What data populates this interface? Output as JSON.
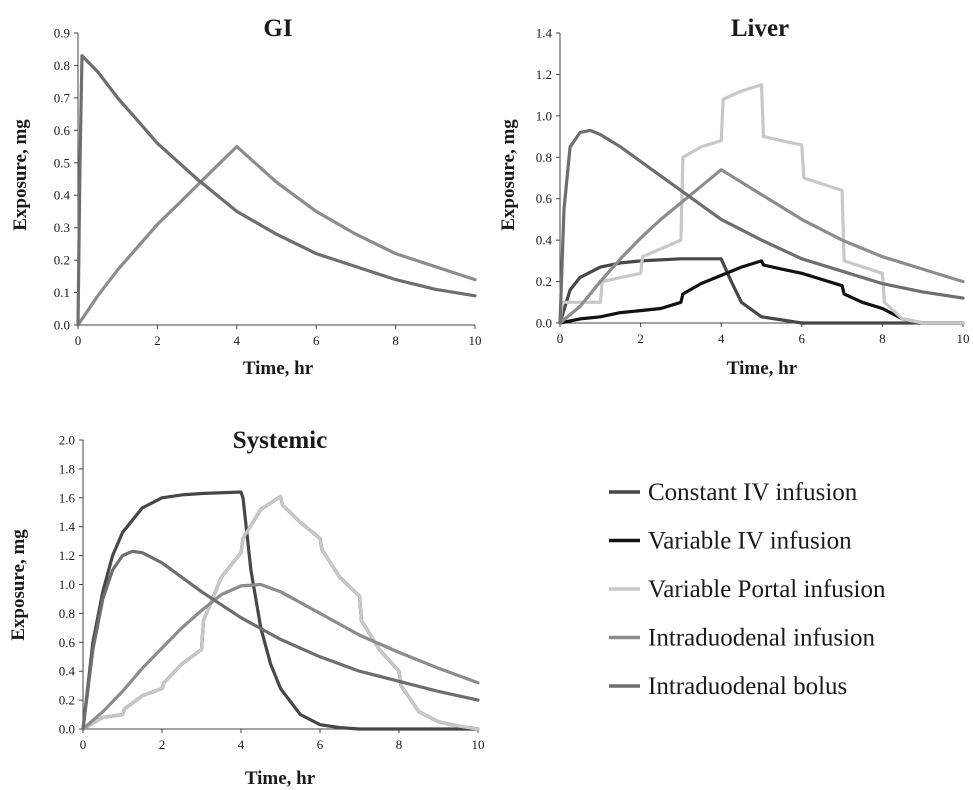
{
  "legend": {
    "entries": [
      {
        "label": "Constant IV infusion",
        "color": "#474747"
      },
      {
        "label": "Variable IV infusion",
        "color": "#111111"
      },
      {
        "label": "Variable Portal infusion",
        "color": "#c8c8c8"
      },
      {
        "label": "Intraduodenal infusion",
        "color": "#8c8c8c"
      },
      {
        "label": "Intraduodenal bolus",
        "color": "#6e6e6e"
      }
    ]
  },
  "chart_data": [
    {
      "type": "line",
      "title": "GI",
      "xlabel": "Time, hr",
      "ylabel": "Exposure, mg",
      "xlim": [
        0,
        10
      ],
      "ylim": [
        0,
        0.9
      ],
      "xticks": [
        "0",
        "2",
        "4",
        "6",
        "8",
        "10"
      ],
      "yticks": [
        "0.0",
        "0.1",
        "0.2",
        "0.3",
        "0.4",
        "0.5",
        "0.6",
        "0.7",
        "0.8",
        "0.9"
      ],
      "grid": false,
      "series": [
        {
          "name": "Intraduodenal infusion",
          "color": "#8c8c8c",
          "x": [
            0,
            0.5,
            1,
            1.5,
            2,
            2.5,
            3,
            3.5,
            4,
            5,
            6,
            7,
            8,
            9,
            10
          ],
          "y": [
            0,
            0.09,
            0.17,
            0.24,
            0.31,
            0.37,
            0.43,
            0.49,
            0.55,
            0.44,
            0.35,
            0.28,
            0.22,
            0.18,
            0.14
          ]
        },
        {
          "name": "Intraduodenal bolus",
          "color": "#6e6e6e",
          "x": [
            0,
            0.05,
            0.1,
            0.5,
            1,
            1.5,
            2,
            3,
            4,
            5,
            6,
            7,
            8,
            9,
            10
          ],
          "y": [
            0,
            0.5,
            0.83,
            0.78,
            0.7,
            0.63,
            0.56,
            0.45,
            0.35,
            0.28,
            0.22,
            0.18,
            0.14,
            0.11,
            0.09
          ]
        }
      ]
    },
    {
      "type": "line",
      "title": "Liver",
      "xlabel": "Time, hr",
      "ylabel": "Exposure, mg",
      "xlim": [
        0,
        10
      ],
      "ylim": [
        0,
        1.4
      ],
      "xticks": [
        "0",
        "2",
        "4",
        "6",
        "8",
        "10"
      ],
      "yticks": [
        "0.0",
        "0.2",
        "0.4",
        "0.6",
        "0.8",
        "1.0",
        "1.2",
        "1.4"
      ],
      "grid": false,
      "series": [
        {
          "name": "Constant IV infusion",
          "color": "#474747",
          "x": [
            0,
            0.25,
            0.5,
            1,
            1.5,
            2,
            3,
            4,
            4.25,
            4.5,
            5,
            6,
            7,
            10
          ],
          "y": [
            0,
            0.16,
            0.22,
            0.27,
            0.29,
            0.3,
            0.31,
            0.31,
            0.2,
            0.1,
            0.03,
            0,
            0,
            0
          ]
        },
        {
          "name": "Variable IV infusion",
          "color": "#111111",
          "x": [
            0,
            0.5,
            1,
            1.5,
            2,
            2.5,
            3,
            3.05,
            3.5,
            4,
            4.5,
            5,
            5.05,
            5.5,
            6,
            6.5,
            7,
            7.05,
            7.5,
            8,
            8.5,
            9,
            10
          ],
          "y": [
            0,
            0.02,
            0.03,
            0.05,
            0.06,
            0.07,
            0.1,
            0.14,
            0.19,
            0.23,
            0.27,
            0.3,
            0.28,
            0.26,
            0.24,
            0.21,
            0.18,
            0.14,
            0.1,
            0.07,
            0.02,
            0,
            0
          ]
        },
        {
          "name": "Variable Portal infusion",
          "color": "#c8c8c8",
          "x": [
            0,
            0.05,
            1,
            1.05,
            2,
            2.05,
            3,
            3.05,
            3.5,
            4,
            4.05,
            4.5,
            5,
            5.05,
            5.5,
            6,
            6.05,
            7,
            7.05,
            8,
            8.05,
            8.5,
            9,
            10
          ],
          "y": [
            0,
            0.1,
            0.1,
            0.2,
            0.24,
            0.32,
            0.4,
            0.8,
            0.85,
            0.88,
            1.08,
            1.12,
            1.15,
            0.9,
            0.88,
            0.86,
            0.7,
            0.64,
            0.3,
            0.24,
            0.1,
            0.02,
            0,
            0
          ]
        },
        {
          "name": "Intraduodenal infusion",
          "color": "#8c8c8c",
          "x": [
            0,
            0.5,
            1,
            1.5,
            2,
            2.5,
            3,
            3.5,
            4,
            5,
            6,
            7,
            8,
            9,
            10
          ],
          "y": [
            0,
            0.08,
            0.2,
            0.31,
            0.41,
            0.5,
            0.58,
            0.66,
            0.74,
            0.62,
            0.5,
            0.4,
            0.32,
            0.26,
            0.2
          ]
        },
        {
          "name": "Intraduodenal bolus",
          "color": "#6e6e6e",
          "x": [
            0,
            0.1,
            0.25,
            0.5,
            0.75,
            1,
            1.5,
            2,
            3,
            4,
            5,
            6,
            7,
            8,
            9,
            10
          ],
          "y": [
            0,
            0.55,
            0.85,
            0.92,
            0.93,
            0.91,
            0.85,
            0.78,
            0.64,
            0.5,
            0.4,
            0.31,
            0.25,
            0.19,
            0.15,
            0.12
          ]
        }
      ]
    },
    {
      "type": "line",
      "title": "Systemic",
      "xlabel": "Time, hr",
      "ylabel": "Exposure, mg",
      "xlim": [
        0,
        10
      ],
      "ylim": [
        0,
        2.0
      ],
      "xticks": [
        "0",
        "2",
        "4",
        "6",
        "8",
        "10"
      ],
      "yticks": [
        "0.0",
        "0.2",
        "0.4",
        "0.6",
        "0.8",
        "1.0",
        "1.2",
        "1.4",
        "1.6",
        "1.8",
        "2.0"
      ],
      "grid": false,
      "series": [
        {
          "name": "Constant IV infusion",
          "color": "#474747",
          "x": [
            0,
            0.25,
            0.5,
            0.75,
            1,
            1.5,
            2,
            2.5,
            3,
            4,
            4.05,
            4.25,
            4.5,
            4.75,
            5,
            5.5,
            6,
            6.5,
            7,
            8,
            10
          ],
          "y": [
            0,
            0.6,
            0.95,
            1.2,
            1.36,
            1.53,
            1.6,
            1.62,
            1.63,
            1.64,
            1.6,
            1.1,
            0.7,
            0.45,
            0.28,
            0.1,
            0.03,
            0.01,
            0,
            0,
            0
          ]
        },
        {
          "name": "Variable IV infusion",
          "color": "#111111",
          "x": [
            0,
            0.5,
            1,
            1.05,
            1.5,
            2,
            2.05,
            2.5,
            3,
            3.05,
            3.5,
            4,
            4.05,
            4.5,
            5,
            5.05,
            5.5,
            6,
            6.05,
            6.5,
            7,
            7.05,
            7.5,
            8,
            8.05,
            8.5,
            9,
            9.5,
            10
          ],
          "y": [
            0,
            0.08,
            0.1,
            0.14,
            0.23,
            0.28,
            0.32,
            0.45,
            0.55,
            0.75,
            1.05,
            1.22,
            1.32,
            1.52,
            1.61,
            1.55,
            1.43,
            1.32,
            1.24,
            1.05,
            0.92,
            0.75,
            0.55,
            0.4,
            0.3,
            0.12,
            0.05,
            0.02,
            0
          ]
        },
        {
          "name": "Variable Portal infusion",
          "color": "#c8c8c8",
          "x": [
            0,
            0.5,
            1,
            1.05,
            1.5,
            2,
            2.05,
            2.5,
            3,
            3.05,
            3.5,
            4,
            4.05,
            4.5,
            5,
            5.05,
            5.5,
            6,
            6.05,
            6.5,
            7,
            7.05,
            7.5,
            8,
            8.05,
            8.5,
            9,
            9.5,
            10
          ],
          "y": [
            0,
            0.08,
            0.1,
            0.14,
            0.23,
            0.28,
            0.32,
            0.45,
            0.55,
            0.75,
            1.05,
            1.22,
            1.32,
            1.52,
            1.61,
            1.55,
            1.43,
            1.32,
            1.24,
            1.05,
            0.92,
            0.75,
            0.55,
            0.4,
            0.3,
            0.12,
            0.05,
            0.02,
            0
          ]
        },
        {
          "name": "Intraduodenal infusion",
          "color": "#8c8c8c",
          "x": [
            0,
            0.5,
            1,
            1.5,
            2,
            2.5,
            3,
            3.5,
            4,
            4.5,
            5,
            6,
            7,
            8,
            9,
            10
          ],
          "y": [
            0,
            0.12,
            0.26,
            0.42,
            0.56,
            0.7,
            0.82,
            0.93,
            0.99,
            1.0,
            0.95,
            0.8,
            0.65,
            0.53,
            0.42,
            0.32
          ]
        },
        {
          "name": "Intraduodenal bolus",
          "color": "#6e6e6e",
          "x": [
            0,
            0.25,
            0.5,
            0.75,
            1,
            1.25,
            1.5,
            2,
            3,
            4,
            5,
            6,
            7,
            8,
            9,
            10
          ],
          "y": [
            0,
            0.55,
            0.9,
            1.1,
            1.2,
            1.23,
            1.22,
            1.15,
            0.95,
            0.77,
            0.62,
            0.5,
            0.4,
            0.33,
            0.26,
            0.2
          ]
        }
      ]
    }
  ]
}
